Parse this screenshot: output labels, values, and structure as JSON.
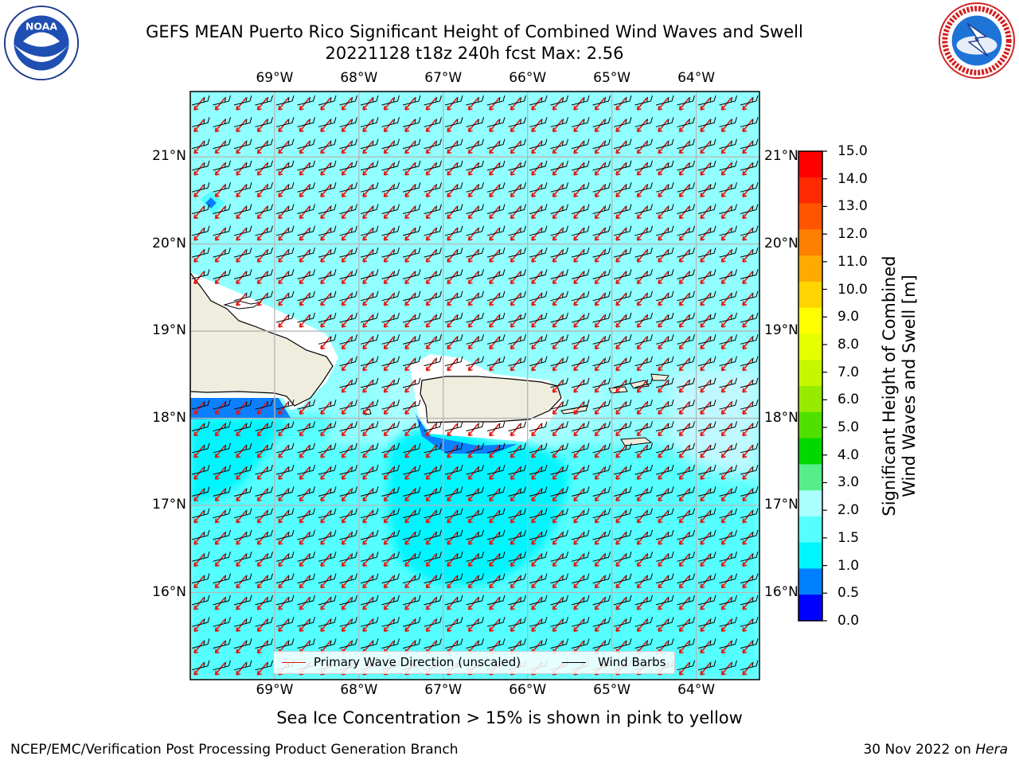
{
  "header": {
    "title_line1": "GEFS MEAN Puerto Rico Significant Height of Combined Wind Waves and Swell",
    "title_line2": "20221128 t18z 240h fcst   Max: 2.56"
  },
  "logos": {
    "left": {
      "icon": "noaa-logo-icon",
      "text": "NOAA",
      "ring_text": "NATIONAL OCEANIC AND ATMOSPHERIC ADMINISTRATION · U.S. DEPARTMENT OF COMMERCE"
    },
    "right": {
      "icon": "nws-logo-icon",
      "ring_text": "NATIONAL WEATHER SERVICE"
    }
  },
  "map": {
    "lon_labels": [
      "69°W",
      "68°W",
      "67°W",
      "66°W",
      "65°W",
      "64°W"
    ],
    "lat_labels": [
      "21°N",
      "20°N",
      "19°N",
      "18°N",
      "17°N",
      "16°N"
    ],
    "lon_values": [
      -69,
      -68,
      -67,
      -66,
      -65,
      -64
    ],
    "lat_values": [
      21,
      20,
      19,
      18,
      17,
      16
    ],
    "extent": {
      "lon_min": -70.0,
      "lon_max": -63.25,
      "lat_min": 15.0,
      "lat_max": 21.75
    },
    "max_value": 2.56,
    "land_color": "#efedde",
    "ocean_base_color": "#91ffff",
    "wave_direction_color": "#e8140e",
    "wind_barb_color": "#000000"
  },
  "legend": {
    "wave_label": "Primary Wave Direction (unscaled)",
    "barb_label": "Wind Barbs"
  },
  "colorbar": {
    "title_line1": "Significant Height of Combined",
    "title_line2": "Wind Waves and Swell [m]",
    "ticks": [
      "15.0",
      "14.0",
      "13.0",
      "12.0",
      "11.0",
      "10.0",
      "9.0",
      "8.0",
      "7.0",
      "6.0",
      "5.0",
      "4.0",
      "3.0",
      "2.0",
      "1.5",
      "1.0",
      "0.5",
      "0.0"
    ],
    "colors": [
      "#ff0000",
      "#ff2a00",
      "#ff5500",
      "#ff8000",
      "#ffaa00",
      "#ffd400",
      "#ffff00",
      "#e6ff00",
      "#c8f500",
      "#96eb00",
      "#50e000",
      "#00d800",
      "#55ee88",
      "#aaffff",
      "#55ffff",
      "#00f5ff",
      "#0080ff",
      "#0000ff"
    ]
  },
  "note": "Sea Ice Concentration > 15% is shown in pink to yellow",
  "footer": {
    "left": "NCEP/EMC/Verification Post Processing Product Generation Branch",
    "right_date": "30 Nov 2022 on ",
    "right_host": "Hera"
  }
}
